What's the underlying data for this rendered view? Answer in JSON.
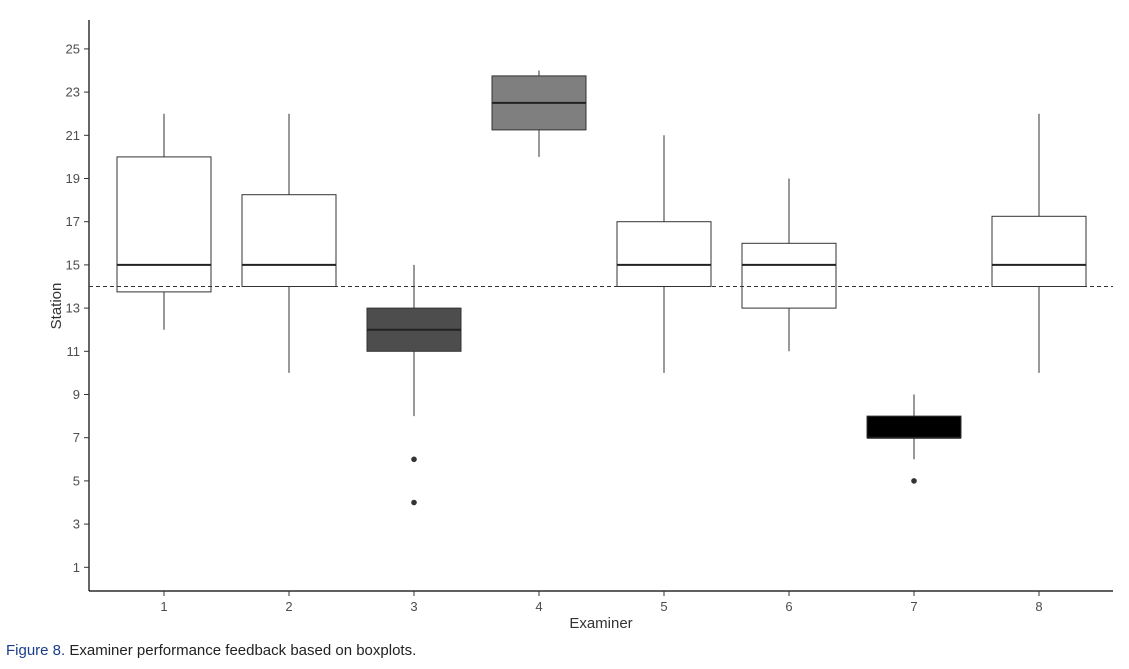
{
  "chart_data": {
    "type": "boxplot",
    "xlabel": "Examiner",
    "ylabel": "Station",
    "ylim": [
      0,
      26
    ],
    "yticks": [
      1,
      3,
      5,
      7,
      9,
      11,
      13,
      15,
      17,
      19,
      21,
      23,
      25
    ],
    "categories": [
      "1",
      "2",
      "3",
      "4",
      "5",
      "6",
      "7",
      "8"
    ],
    "reference_line": 14,
    "grid": false,
    "boxes": [
      {
        "category": "1",
        "min": 12,
        "q1": 13.75,
        "median": 15,
        "q3": 20,
        "max": 22,
        "outliers": [],
        "fill": "#ffffff"
      },
      {
        "category": "2",
        "min": 10,
        "q1": 14,
        "median": 15,
        "q3": 18.25,
        "max": 22,
        "outliers": [],
        "fill": "#ffffff"
      },
      {
        "category": "3",
        "min": 8,
        "q1": 11,
        "median": 12,
        "q3": 13,
        "max": 15,
        "outliers": [
          6,
          4
        ],
        "fill": "#4d4d4d"
      },
      {
        "category": "4",
        "min": 20,
        "q1": 21.25,
        "median": 22.5,
        "q3": 23.75,
        "max": 24,
        "outliers": [],
        "fill": "#7f7f7f"
      },
      {
        "category": "5",
        "min": 10,
        "q1": 14,
        "median": 15,
        "q3": 17,
        "max": 21,
        "outliers": [],
        "fill": "#ffffff"
      },
      {
        "category": "6",
        "min": 11,
        "q1": 13,
        "median": 15,
        "q3": 16,
        "max": 19,
        "outliers": [],
        "fill": "#ffffff"
      },
      {
        "category": "7",
        "min": 6,
        "q1": 7,
        "median": 7,
        "q3": 8,
        "max": 9,
        "outliers": [
          5
        ],
        "fill": "#000000"
      },
      {
        "category": "8",
        "min": 10,
        "q1": 14,
        "median": 15,
        "q3": 17.25,
        "max": 22,
        "outliers": [],
        "fill": "#ffffff"
      }
    ]
  },
  "caption": {
    "label": "Figure 8.",
    "text": "Examiner performance feedback based on boxplots."
  }
}
